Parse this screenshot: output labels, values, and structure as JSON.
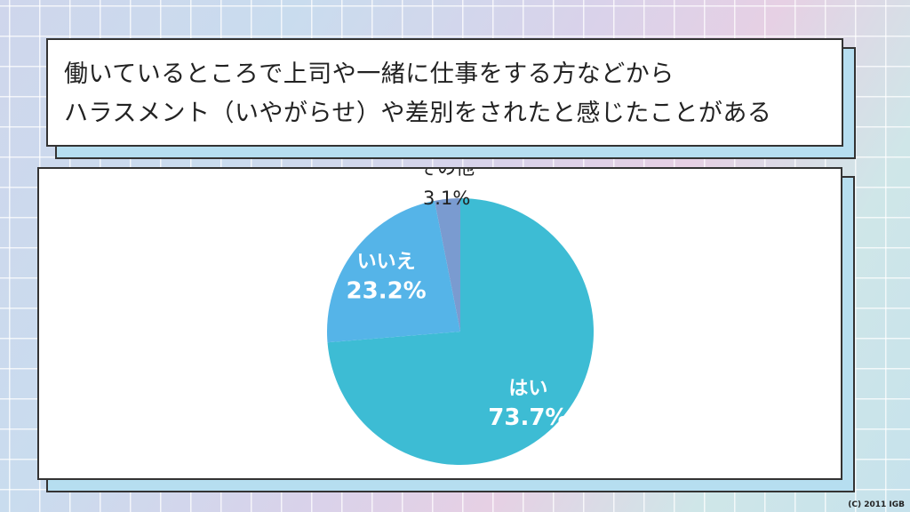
{
  "title": {
    "line1": "働いているところで上司や一緒に仕事をする方などから",
    "line2": "ハラスメント（いやがらせ）や差別をされたと感じたことがある"
  },
  "chart_data": {
    "type": "pie",
    "slices": [
      {
        "label": "はい",
        "value": 73.7,
        "value_text": "73.7%",
        "color": "#3dbcd4"
      },
      {
        "label": "いいえ",
        "value": 23.2,
        "value_text": "23.2%",
        "color": "#55b4e8"
      },
      {
        "label": "その他",
        "value": 3.1,
        "value_text": "3.1%",
        "color": "#7a9bd0"
      }
    ],
    "start": "12 o'clock",
    "direction": "clockwise"
  },
  "footer": {
    "copyright": "(C) 2011 IGB"
  }
}
